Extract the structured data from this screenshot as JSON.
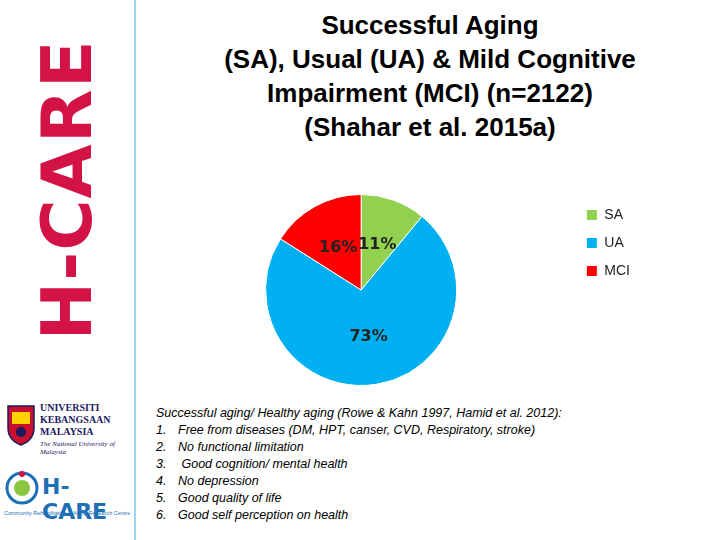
{
  "chart_data": {
    "type": "pie",
    "title": [
      "Successful Aging",
      "(SA), Usual (UA) & Mild Cognitive",
      "Impairment (MCI) (n=2122)",
      "(Shahar et al. 2015a)"
    ],
    "categories": [
      "SA",
      "UA",
      "MCI"
    ],
    "values": [
      11,
      73,
      16
    ],
    "value_labels": [
      "11%",
      "73%",
      "16%"
    ],
    "colors": [
      "#92d050",
      "#00b0f0",
      "#ff0000"
    ],
    "data_labels": true,
    "legend": "right"
  },
  "side_text": "H-CARE",
  "logos": {
    "university": [
      "UNIVERSITI",
      "KEBANGSAAN",
      "MALAYSIA"
    ],
    "university_subtitle": "The National University of Malaysia",
    "centre": "H-CARE",
    "centre_subtitle": "Community Rehabilitation & Aging Research Centre"
  },
  "notes": {
    "heading": "Successful aging/ Healthy aging (Rowe & Kahn 1997, Hamid et al. 2012):",
    "items": [
      {
        "number": "1.",
        "text": "Free from diseases (DM, HPT, canser, CVD, Respiratory, stroke)"
      },
      {
        "number": "2.",
        "text": "No functional limitation"
      },
      {
        "number": "3.",
        "text": " Good cognition/ mental health"
      },
      {
        "number": "4.",
        "text": "No depression"
      },
      {
        "number": "5.",
        "text": "Good quality of life"
      },
      {
        "number": "6.",
        "text": "Good self perception on health"
      }
    ]
  }
}
